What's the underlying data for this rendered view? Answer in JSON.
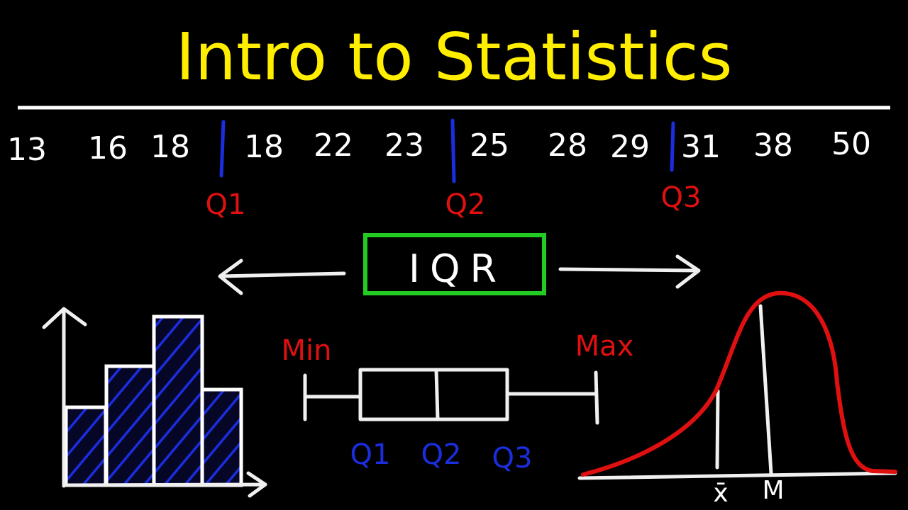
{
  "title": "Intro to Statistics",
  "dataset": {
    "groups": [
      [
        "13",
        "16",
        "18"
      ],
      [
        "18",
        "22",
        "23"
      ],
      [
        "25",
        "28",
        "29"
      ],
      [
        "31",
        "38",
        "50"
      ]
    ],
    "divider_labels": [
      "Q1",
      "Q2",
      "Q3"
    ]
  },
  "iqr": {
    "label": "IQR"
  },
  "boxplot": {
    "min_label": "Min",
    "max_label": "Max",
    "quartile_labels": [
      "Q1",
      "Q2",
      "Q3"
    ]
  },
  "distribution": {
    "mean_label": "x̄",
    "median_label": "M"
  },
  "colors": {
    "title": "#ffee00",
    "quartile_markers": "#1a2ee0",
    "quartile_labels_top": "#e01010",
    "iqr_box": "#22cc22",
    "curve": "#e01010",
    "histogram_hatch": "#1a2ee0"
  }
}
